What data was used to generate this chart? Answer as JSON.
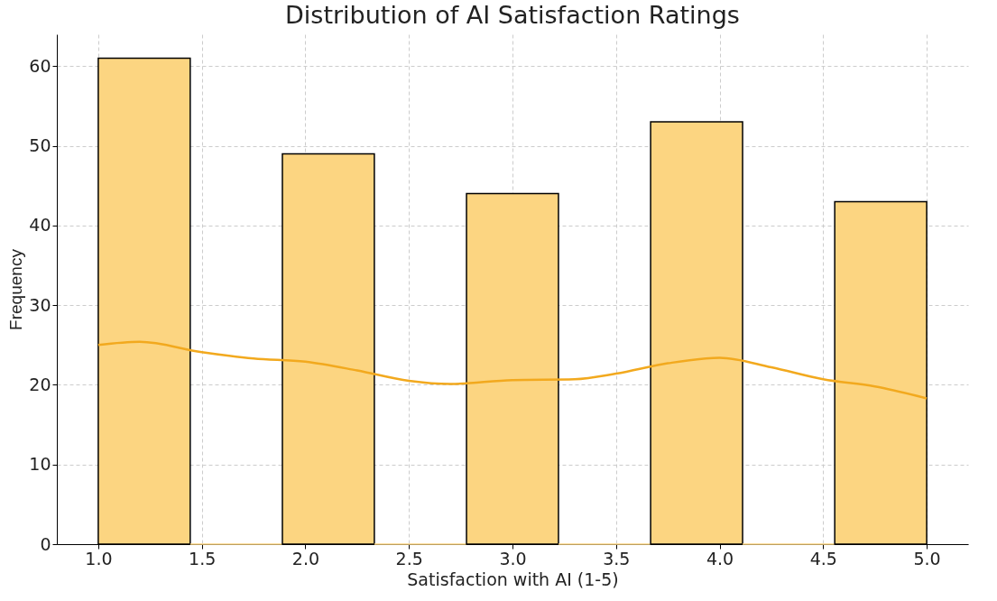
{
  "chart_data": {
    "type": "histogram",
    "title": "Distribution of AI Satisfaction Ratings",
    "xlabel": "Satisfaction with AI (1-5)",
    "ylabel": "Frequency",
    "series": [
      {
        "color": "#fcd581",
        "bins": [
          1.0,
          1.444,
          1.889,
          2.333,
          2.778,
          3.222,
          3.667,
          4.111,
          4.556,
          5.0
        ],
        "values": [
          61,
          0,
          49,
          0,
          44,
          0,
          53,
          0,
          43
        ]
      },
      {
        "type": "line",
        "color": "#f2a91e",
        "x": [
          1.0,
          1.2,
          1.5,
          1.75,
          2.0,
          2.25,
          2.5,
          2.7,
          3.0,
          3.3,
          3.5,
          3.75,
          4.0,
          4.25,
          4.5,
          4.75,
          5.0
        ],
        "values": [
          25.0,
          25.4,
          24.1,
          23.3,
          22.9,
          21.8,
          20.5,
          20.1,
          20.6,
          20.7,
          21.4,
          22.7,
          23.4,
          22.2,
          20.7,
          19.8,
          18.3
        ]
      }
    ],
    "xlim": [
      0.8,
      5.2
    ],
    "ylim": [
      0,
      64
    ],
    "xticks": [
      {
        "value": 1,
        "label": "1.0"
      },
      {
        "value": 1.5,
        "label": "1.5"
      },
      {
        "value": 2,
        "label": "2.0"
      },
      {
        "value": 2.5,
        "label": "2.5"
      },
      {
        "value": 3,
        "label": "3.0"
      },
      {
        "value": 3.5,
        "label": "3.5"
      },
      {
        "value": 4,
        "label": "4.0"
      },
      {
        "value": 4.5,
        "label": "4.5"
      },
      {
        "value": 5,
        "label": "5.0"
      }
    ],
    "yticks": [
      0,
      10,
      20,
      30,
      40,
      50,
      60
    ],
    "grid": true
  }
}
